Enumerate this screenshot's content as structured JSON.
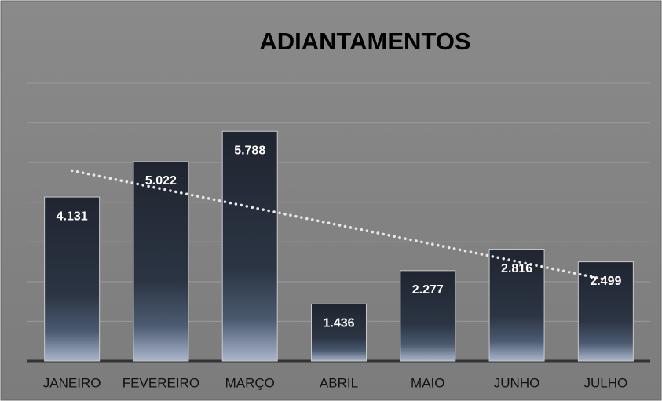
{
  "chart_data": {
    "type": "bar",
    "title": "ADIANTAMENTOS",
    "categories": [
      "JANEIRO",
      "FEVEREIRO",
      "MARÇO",
      "ABRIL",
      "MAIO",
      "JUNHO",
      "JULHO"
    ],
    "values": [
      4131,
      5022,
      5788,
      1436,
      2277,
      2816,
      2499
    ],
    "value_labels": [
      "4.131",
      "5.022",
      "5.788",
      "1.436",
      "2.277",
      "2.816",
      "2.499"
    ],
    "ylim": [
      0,
      7000
    ],
    "yticks": [
      0,
      1000,
      2000,
      3000,
      4000,
      5000,
      6000,
      7000
    ],
    "grid": true,
    "trendline": true
  }
}
